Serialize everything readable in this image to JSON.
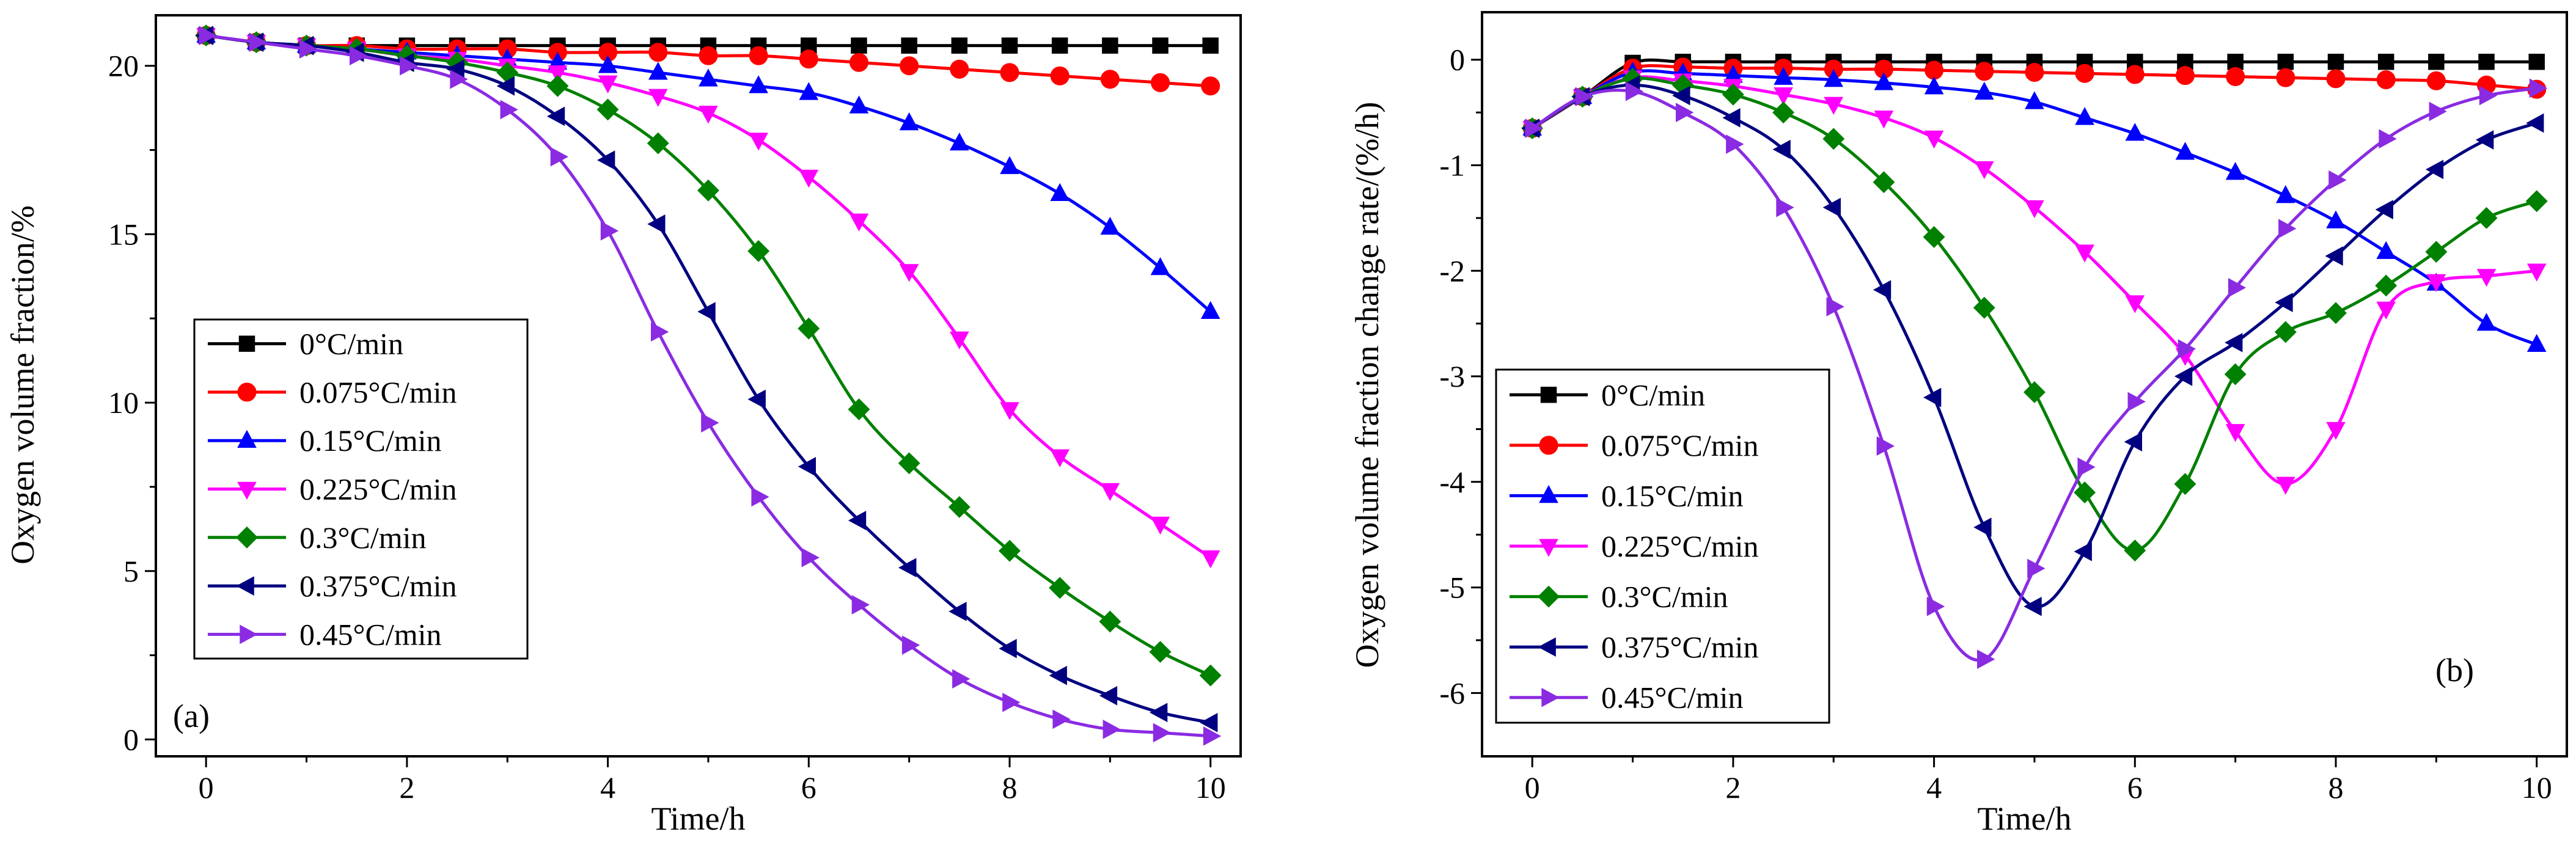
{
  "chart_data": [
    {
      "type": "line",
      "panel_label": "(a)",
      "xlabel": "Time/h",
      "ylabel": "Oxygen volume fraction/%",
      "xlim": [
        -0.5,
        10.3
      ],
      "ylim": [
        -0.5,
        21.5
      ],
      "xticks": [
        0,
        2,
        4,
        6,
        8,
        10
      ],
      "yticks": [
        0,
        5,
        10,
        15,
        20
      ],
      "x": [
        0,
        0.5,
        1,
        1.5,
        2,
        2.5,
        3,
        3.5,
        4,
        4.5,
        5,
        5.5,
        6,
        6.5,
        7,
        7.5,
        8,
        8.5,
        9,
        9.5,
        10
      ],
      "legend_position": "left",
      "series": [
        {
          "name": "0°C/min",
          "color": "#000000",
          "marker": "square",
          "values": [
            20.9,
            20.7,
            20.6,
            20.6,
            20.6,
            20.6,
            20.6,
            20.6,
            20.6,
            20.6,
            20.6,
            20.6,
            20.6,
            20.6,
            20.6,
            20.6,
            20.6,
            20.6,
            20.6,
            20.6,
            20.6
          ]
        },
        {
          "name": "0.075°C/min",
          "color": "#ff0000",
          "marker": "circle",
          "values": [
            20.9,
            20.7,
            20.6,
            20.6,
            20.5,
            20.5,
            20.5,
            20.4,
            20.4,
            20.4,
            20.3,
            20.3,
            20.2,
            20.1,
            20.0,
            19.9,
            19.8,
            19.7,
            19.6,
            19.5,
            19.4
          ]
        },
        {
          "name": "0.15°C/min",
          "color": "#0000ff",
          "marker": "triangle-up",
          "values": [
            20.9,
            20.7,
            20.6,
            20.5,
            20.4,
            20.3,
            20.2,
            20.1,
            20.0,
            19.8,
            19.6,
            19.4,
            19.2,
            18.8,
            18.3,
            17.7,
            17.0,
            16.2,
            15.2,
            14.0,
            12.7
          ]
        },
        {
          "name": "0.225°C/min",
          "color": "#ff00ff",
          "marker": "triangle-down",
          "values": [
            20.9,
            20.7,
            20.6,
            20.5,
            20.3,
            20.2,
            20.0,
            19.8,
            19.5,
            19.1,
            18.6,
            17.8,
            16.7,
            15.4,
            13.9,
            11.9,
            9.8,
            8.4,
            7.4,
            6.4,
            5.4
          ]
        },
        {
          "name": "0.3°C/min",
          "color": "#008000",
          "marker": "diamond",
          "values": [
            20.9,
            20.7,
            20.6,
            20.5,
            20.3,
            20.1,
            19.8,
            19.4,
            18.7,
            17.7,
            16.3,
            14.5,
            12.2,
            9.8,
            8.2,
            6.9,
            5.6,
            4.5,
            3.5,
            2.6,
            1.9
          ]
        },
        {
          "name": "0.375°C/min",
          "color": "#000080",
          "marker": "triangle-left",
          "values": [
            20.9,
            20.7,
            20.6,
            20.4,
            20.1,
            19.9,
            19.4,
            18.5,
            17.2,
            15.3,
            12.7,
            10.1,
            8.1,
            6.5,
            5.1,
            3.8,
            2.7,
            1.9,
            1.3,
            0.8,
            0.5
          ]
        },
        {
          "name": "0.45°C/min",
          "color": "#8a2be2",
          "marker": "triangle-right",
          "values": [
            20.9,
            20.7,
            20.5,
            20.3,
            20.0,
            19.6,
            18.7,
            17.3,
            15.1,
            12.1,
            9.4,
            7.2,
            5.4,
            4.0,
            2.8,
            1.8,
            1.1,
            0.6,
            0.3,
            0.2,
            0.1
          ]
        }
      ]
    },
    {
      "type": "line",
      "panel_label": "(b)",
      "xlabel": "Time/h",
      "ylabel": "Oxygen volume fraction change rate/(%/h)",
      "xlim": [
        -0.5,
        10.3
      ],
      "ylim": [
        -6.6,
        0.45
      ],
      "xticks": [
        0,
        2,
        4,
        6,
        8,
        10
      ],
      "yticks": [
        0,
        -1,
        -2,
        -3,
        -4,
        -5,
        -6
      ],
      "x": [
        0,
        0.5,
        1,
        1.5,
        2,
        2.5,
        3,
        3.5,
        4,
        4.5,
        5,
        5.5,
        6,
        6.5,
        7,
        7.5,
        8,
        8.5,
        9,
        9.5,
        10
      ],
      "legend_position": "bottom-left",
      "series": [
        {
          "name": "0°C/min",
          "color": "#000000",
          "marker": "square",
          "values": [
            -0.65,
            -0.35,
            -0.03,
            -0.02,
            -0.02,
            -0.02,
            -0.02,
            -0.02,
            -0.02,
            -0.02,
            -0.02,
            -0.02,
            -0.02,
            -0.02,
            -0.02,
            -0.02,
            -0.02,
            -0.02,
            -0.02,
            -0.02,
            -0.02
          ]
        },
        {
          "name": "0.075°C/min",
          "color": "#ff0000",
          "marker": "circle",
          "values": [
            -0.65,
            -0.35,
            -0.08,
            -0.07,
            -0.08,
            -0.08,
            -0.09,
            -0.09,
            -0.1,
            -0.11,
            -0.12,
            -0.13,
            -0.14,
            -0.15,
            -0.16,
            -0.17,
            -0.18,
            -0.19,
            -0.2,
            -0.24,
            -0.28
          ]
        },
        {
          "name": "0.15°C/min",
          "color": "#0000ff",
          "marker": "triangle-up",
          "values": [
            -0.65,
            -0.35,
            -0.12,
            -0.13,
            -0.15,
            -0.17,
            -0.19,
            -0.22,
            -0.26,
            -0.31,
            -0.4,
            -0.55,
            -0.7,
            -0.88,
            -1.07,
            -1.29,
            -1.53,
            -1.82,
            -2.12,
            -2.5,
            -2.7
          ]
        },
        {
          "name": "0.225°C/min",
          "color": "#ff00ff",
          "marker": "triangle-down",
          "values": [
            -0.65,
            -0.35,
            -0.17,
            -0.2,
            -0.25,
            -0.33,
            -0.42,
            -0.55,
            -0.74,
            -1.03,
            -1.4,
            -1.82,
            -2.3,
            -2.8,
            -3.52,
            -4.02,
            -3.5,
            -2.36,
            -2.1,
            -2.05,
            -2.0
          ]
        },
        {
          "name": "0.3°C/min",
          "color": "#008000",
          "marker": "diamond",
          "values": [
            -0.65,
            -0.35,
            -0.18,
            -0.24,
            -0.33,
            -0.5,
            -0.75,
            -1.16,
            -1.68,
            -2.35,
            -3.15,
            -4.1,
            -4.65,
            -4.02,
            -2.98,
            -2.58,
            -2.4,
            -2.14,
            -1.82,
            -1.5,
            -1.34
          ]
        },
        {
          "name": "0.375°C/min",
          "color": "#000080",
          "marker": "triangle-left",
          "values": [
            -0.65,
            -0.35,
            -0.24,
            -0.34,
            -0.55,
            -0.85,
            -1.4,
            -2.18,
            -3.2,
            -4.43,
            -5.18,
            -4.66,
            -3.62,
            -3.0,
            -2.68,
            -2.3,
            -1.86,
            -1.42,
            -1.04,
            -0.76,
            -0.6
          ]
        },
        {
          "name": "0.45°C/min",
          "color": "#8a2be2",
          "marker": "triangle-right",
          "values": [
            -0.65,
            -0.35,
            -0.3,
            -0.5,
            -0.8,
            -1.4,
            -2.34,
            -3.66,
            -5.18,
            -5.68,
            -4.82,
            -3.86,
            -3.24,
            -2.74,
            -2.16,
            -1.6,
            -1.14,
            -0.75,
            -0.49,
            -0.34,
            -0.27
          ]
        }
      ]
    }
  ]
}
